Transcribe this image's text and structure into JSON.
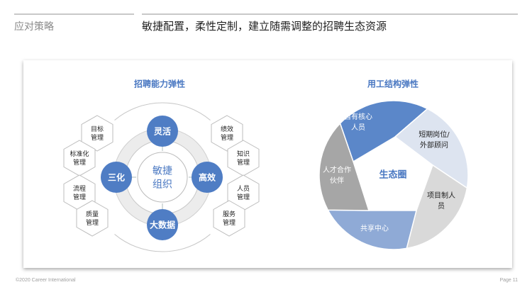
{
  "header": {
    "section": "应对策略",
    "headline": "敏捷配置，柔性定制，建立随需调整的招聘生态资源"
  },
  "left_diagram": {
    "title": "招聘能力弹性",
    "center": [
      "敏捷",
      "组织"
    ],
    "nodes": [
      "灵活",
      "高效",
      "大数据",
      "三化"
    ],
    "left_hexagons": [
      [
        "目标",
        "管理"
      ],
      [
        "标准化",
        "管理"
      ],
      [
        "流程",
        "管理"
      ],
      [
        "质量",
        "管理"
      ]
    ],
    "right_hexagons": [
      [
        "绩效",
        "管理"
      ],
      [
        "知识",
        "管理"
      ],
      [
        "人员",
        "管理"
      ],
      [
        "服务",
        "管理"
      ]
    ]
  },
  "right_diagram": {
    "title": "用工结构弹性",
    "center": "生态圈",
    "segments": [
      {
        "label": [
          "自有核心",
          "人员"
        ],
        "color": "#5b87c9",
        "text_color": "#ffffff"
      },
      {
        "label": [
          "短期岗位/",
          "外部顾问"
        ],
        "color": "#dde4f0",
        "text_color": "#222222"
      },
      {
        "label": [
          "项目制人",
          "员"
        ],
        "color": "#d9d9d9",
        "text_color": "#222222"
      },
      {
        "label": [
          "共享中心"
        ],
        "color": "#8faad6",
        "text_color": "#ffffff"
      },
      {
        "label": [
          "人才合作",
          "伙伴"
        ],
        "color": "#a6a6a6",
        "text_color": "#ffffff"
      }
    ]
  },
  "colors": {
    "accent": "#4a78c2",
    "title": "#4a78c2"
  },
  "footer": {
    "copyright": "©2020 Career  International",
    "page": "Page 11"
  }
}
